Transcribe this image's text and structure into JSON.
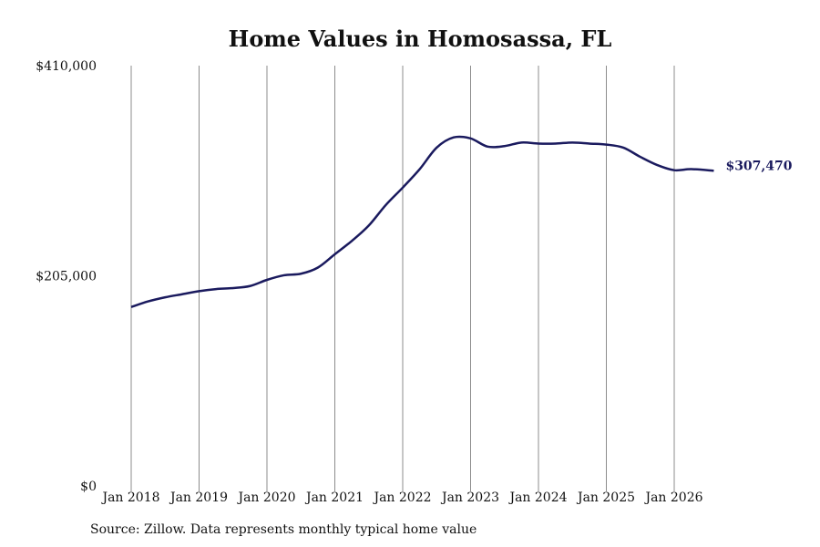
{
  "chart_data": {
    "type": "line",
    "title": "Home Values in Homosassa, FL",
    "xlabel": "",
    "ylabel": "",
    "x_ticks": [
      "Jan 2018",
      "Jan 2019",
      "Jan 2020",
      "Jan 2021",
      "Jan 2022",
      "Jan 2023",
      "Jan 2024",
      "Jan 2025",
      "Jan 2026"
    ],
    "y_ticks": [
      "$0",
      "$205,000",
      "$410,000"
    ],
    "ylim": [
      0,
      410000
    ],
    "xlim": [
      "2018-01",
      "2026-08"
    ],
    "grid": "vertical",
    "line_color": "#1a1a5e",
    "end_label": "$307,470",
    "series": [
      {
        "x": [
          "2018-01",
          "2018-04",
          "2018-07",
          "2018-10",
          "2019-01",
          "2019-04",
          "2019-07",
          "2019-10",
          "2020-01",
          "2020-04",
          "2020-07",
          "2020-10",
          "2021-01",
          "2021-04",
          "2021-07",
          "2021-10",
          "2022-01",
          "2022-04",
          "2022-07",
          "2022-10",
          "2023-01",
          "2023-04",
          "2023-07",
          "2023-10",
          "2024-01",
          "2024-04",
          "2024-07",
          "2024-10",
          "2025-01",
          "2025-04",
          "2025-07",
          "2025-10",
          "2026-01",
          "2026-04",
          "2026-08"
        ],
        "values": [
          174500,
          180000,
          184000,
          187000,
          190000,
          192000,
          193000,
          195000,
          201000,
          205500,
          207000,
          213000,
          226000,
          239000,
          254000,
          274000,
          291000,
          309000,
          330000,
          340000,
          339000,
          331000,
          331500,
          335000,
          334000,
          334000,
          335000,
          334000,
          333000,
          330000,
          321000,
          313000,
          308000,
          309000,
          307470
        ]
      }
    ]
  },
  "source": "Source: Zillow. Data represents monthly typical home value"
}
